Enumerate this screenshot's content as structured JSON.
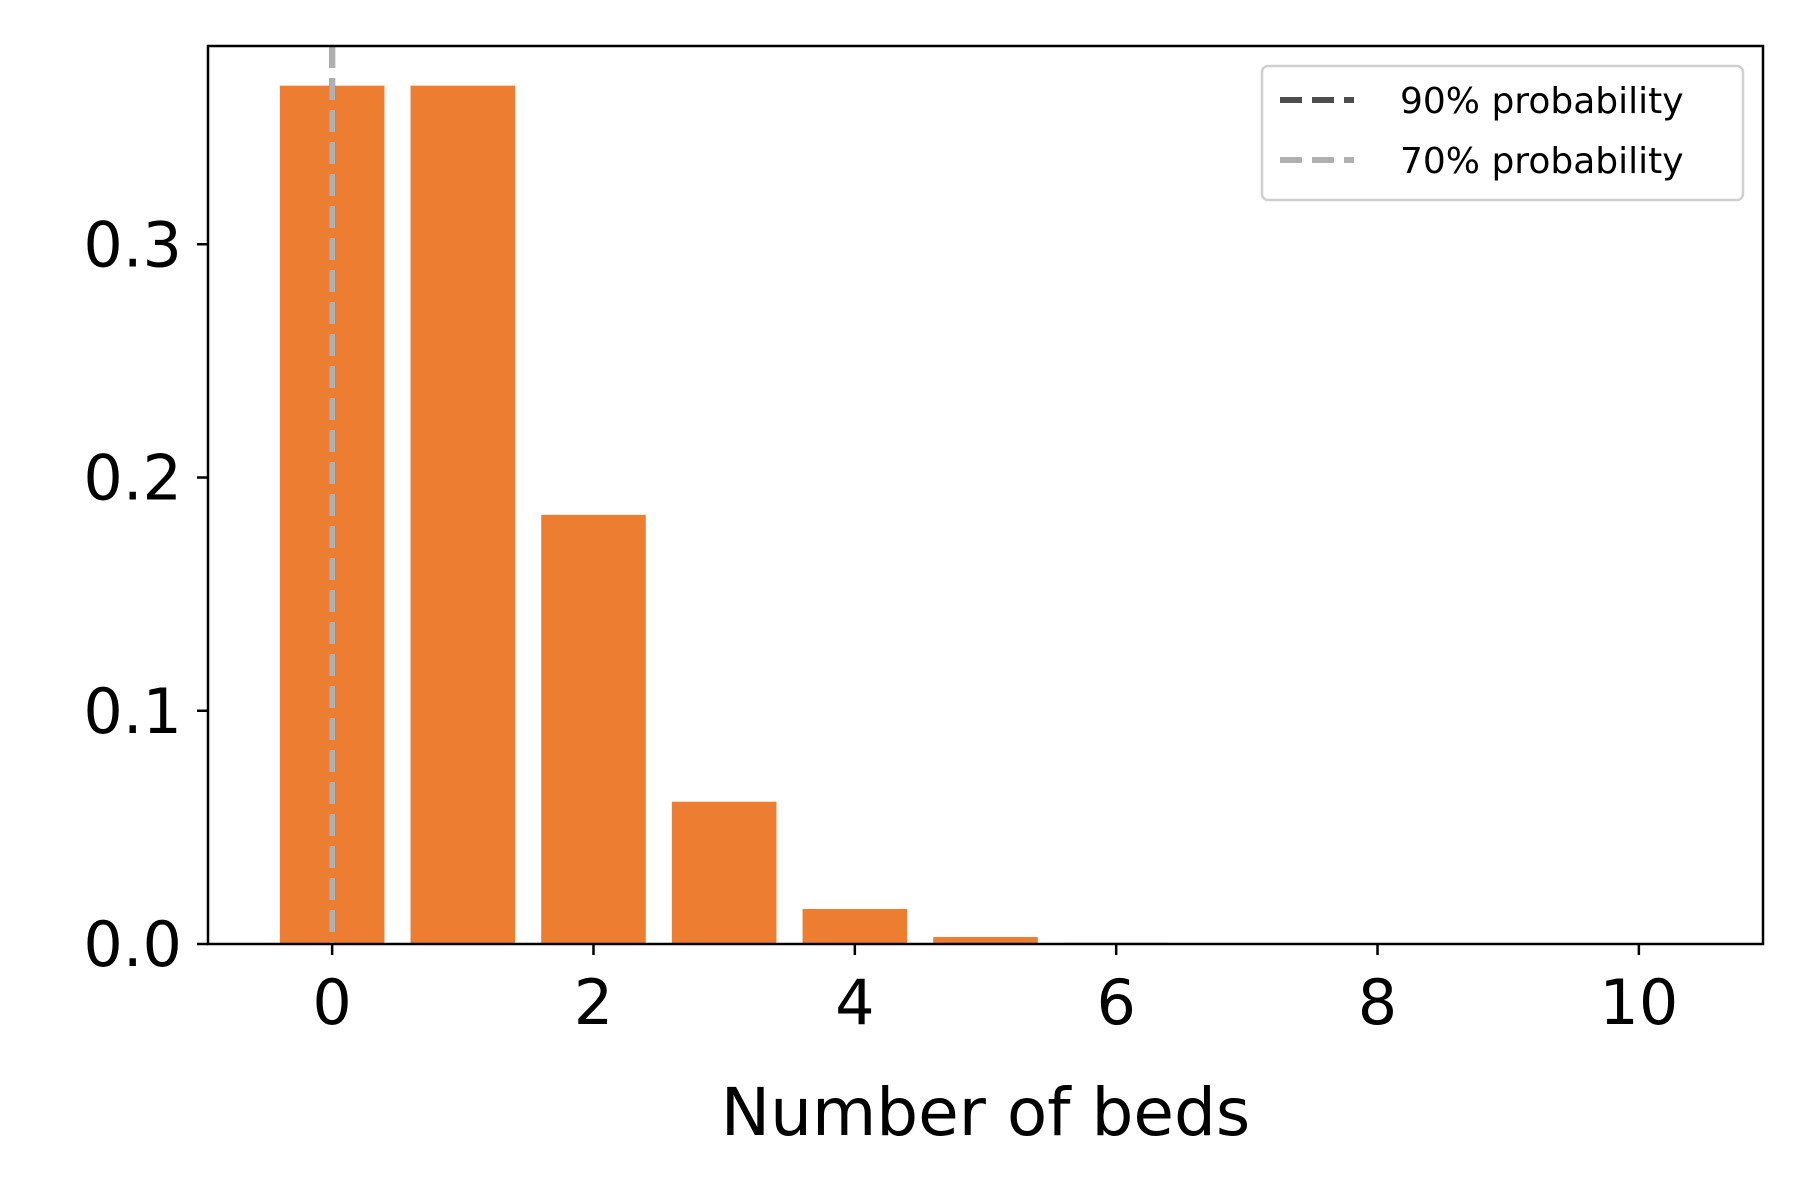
{
  "chart_data": {
    "type": "bar",
    "title": "",
    "xlabel": "Number of beds",
    "ylabel": "",
    "xlim": [
      -0.95,
      10.95
    ],
    "ylim": [
      0,
      0.385
    ],
    "x_ticks": [
      0,
      2,
      4,
      6,
      8,
      10
    ],
    "x_tick_labels": [
      "0",
      "2",
      "4",
      "6",
      "8",
      "10"
    ],
    "y_ticks": [
      0.0,
      0.1,
      0.2,
      0.3
    ],
    "y_tick_labels": [
      "0.0",
      "0.1",
      "0.2",
      "0.3"
    ],
    "grid": false,
    "bar_color": "#ed7d31",
    "categories": [
      0,
      1,
      2,
      3,
      4,
      5,
      6,
      7,
      8,
      9,
      10
    ],
    "values": [
      0.368,
      0.368,
      0.184,
      0.061,
      0.015,
      0.003,
      0.0005,
      0.0001,
      0.0,
      0.0,
      0.0
    ],
    "reference_lines": [
      {
        "label": "90% probability",
        "x": 0,
        "color": "#4d4d4d",
        "style": "dashed"
      },
      {
        "label": "70% probability",
        "x": 0,
        "color": "#b0b0b0",
        "style": "dashed"
      }
    ],
    "legend": {
      "position": "top-right",
      "entries": [
        {
          "label": "90% probability",
          "color": "#4d4d4d"
        },
        {
          "label": "70% probability",
          "color": "#b0b0b0"
        }
      ]
    }
  }
}
